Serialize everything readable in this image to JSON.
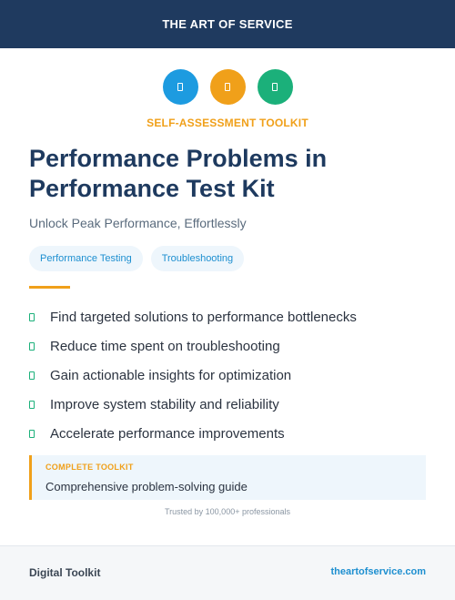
{
  "header": {
    "title": "THE ART OF SERVICE"
  },
  "icons": [
    {
      "name": "document-icon",
      "color": "#1d9be0"
    },
    {
      "name": "document-icon",
      "color": "#f0a01a"
    },
    {
      "name": "document-icon",
      "color": "#1bb07a"
    }
  ],
  "kicker": "SELF-ASSESSMENT TOOLKIT",
  "title_line1": "Performance Problems in",
  "title_line2": "Performance Test Kit",
  "subtitle": "Unlock Peak Performance, Effortlessly",
  "tags": [
    "Performance Testing",
    "Troubleshooting"
  ],
  "benefits": [
    "Find targeted solutions to performance bottlenecks",
    "Reduce time spent on troubleshooting",
    "Gain actionable insights for optimization",
    "Improve system stability and reliability",
    "Accelerate performance improvements"
  ],
  "callout": {
    "label": "COMPLETE TOOLKIT",
    "text": "Comprehensive problem-solving guide"
  },
  "trust": "Trusted by 100,000+ professionals",
  "footer": {
    "left": "Digital Toolkit",
    "right": "theartofservice.com"
  },
  "colors": {
    "header_bg": "#1f3a5f",
    "accent_orange": "#f0a01a",
    "accent_blue": "#1d8fd0",
    "accent_green": "#1bb07a"
  }
}
